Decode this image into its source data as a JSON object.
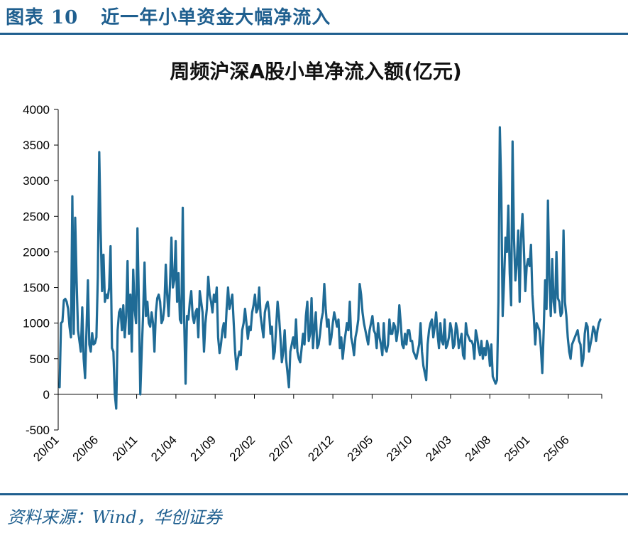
{
  "header": {
    "figure_label": "图表 10",
    "figure_title": "近一年小单资金大幅净流入"
  },
  "source": "资料来源：Wind，华创证券",
  "colors": {
    "accent": "#1f5f8f",
    "series": "#1f6b96",
    "axis": "#000000"
  },
  "chart_data": {
    "type": "line",
    "title": "周频沪深A股小单净流入额(亿元)",
    "xlabel": "",
    "ylabel": "",
    "ylim": [
      -500,
      4000
    ],
    "yticks": [
      -500,
      0,
      500,
      1000,
      1500,
      2000,
      2500,
      3000,
      3500,
      4000
    ],
    "x_tick_labels": [
      "20/01",
      "20/06",
      "20/11",
      "21/04",
      "21/09",
      "22/02",
      "22/07",
      "22/12",
      "23/05",
      "23/10",
      "24/03",
      "24/08",
      "25/01",
      "25/06"
    ],
    "grid": false,
    "legend": "none",
    "series": [
      {
        "name": "周频沪深A股小单净流入额",
        "frequency": "weekly",
        "values": [
          100,
          1000,
          1020,
          1320,
          1340,
          1300,
          1200,
          950,
          800,
          2780,
          850,
          2480,
          1600,
          900,
          750,
          600,
          1220,
          500,
          230,
          900,
          1600,
          700,
          600,
          860,
          700,
          720,
          800,
          1650,
          3400,
          2300,
          1450,
          1960,
          1300,
          1400,
          1350,
          1500,
          2080,
          650,
          600,
          0,
          -200,
          900,
          1150,
          1200,
          900,
          1250,
          800,
          1100,
          1870,
          850,
          1400,
          600,
          1750,
          1200,
          1000,
          2330,
          1300,
          0,
          600,
          1130,
          1850,
          1100,
          1300,
          1000,
          950,
          1150,
          1000,
          600,
          1150,
          1350,
          1400,
          1300,
          1000,
          1050,
          1230,
          1820,
          1400,
          1100,
          1550,
          2200,
          1500,
          1600,
          2150,
          1300,
          1700,
          1050,
          1000,
          2620,
          1050,
          150,
          1100,
          1050,
          1300,
          1450,
          1100,
          1000,
          1150,
          1200,
          800,
          1450,
          1300,
          1150,
          600,
          1000,
          1200,
          1650,
          1400,
          1300,
          1150,
          1400,
          1300,
          1500,
          800,
          580,
          700,
          900,
          1000,
          800,
          1200,
          1500,
          1200,
          1300,
          1400,
          1000,
          600,
          350,
          500,
          600,
          550,
          900,
          1000,
          1200,
          1000,
          780,
          950,
          900,
          1150,
          1250,
          1400,
          1150,
          1200,
          1500,
          1100,
          950,
          800,
          1150,
          1250,
          1300,
          1150,
          850,
          950,
          500,
          600,
          950,
          1300,
          1100,
          800,
          450,
          600,
          900,
          500,
          300,
          100,
          600,
          700,
          800,
          650,
          1050,
          600,
          500,
          450,
          650,
          850,
          700,
          1100,
          1300,
          750,
          850,
          1350,
          650,
          950,
          1150,
          650,
          700,
          850,
          1050,
          1150,
          1550,
          1200,
          950,
          1050,
          700,
          800,
          1000,
          1150,
          1050,
          950,
          1050,
          650,
          800,
          500,
          700,
          850,
          1000,
          900,
          1300,
          800,
          700,
          550,
          800,
          900,
          1050,
          1550,
          1400,
          1150,
          1000,
          900,
          800,
          700,
          900,
          1000,
          1100,
          900,
          850,
          650,
          1000,
          800,
          700,
          550,
          1000,
          650,
          600,
          700,
          1050,
          850,
          850,
          1000,
          950,
          750,
          900,
          1250,
          1000,
          700,
          650,
          850,
          700,
          900,
          900,
          750,
          750,
          600,
          550,
          500,
          600,
          700,
          1000,
          600,
          400,
          300,
          200,
          700,
          900,
          1000,
          1050,
          800,
          950,
          1150,
          850,
          650,
          1000,
          750,
          700,
          1050,
          650,
          700,
          800,
          1000,
          900,
          650,
          700,
          1000,
          900,
          650,
          750,
          850,
          550,
          500,
          1000,
          850,
          800,
          750,
          750,
          700,
          500,
          900,
          800,
          650,
          550,
          750,
          500,
          650,
          550,
          750,
          650,
          400,
          700,
          250,
          200,
          150,
          200,
          1300,
          3750,
          2900,
          1100,
          1600,
          2200,
          2000,
          2650,
          1700,
          1250,
          3550,
          2200,
          1600,
          1850,
          2300,
          1300,
          2200,
          2530,
          2050,
          1450,
          1800,
          1900,
          1800,
          2100,
          1400,
          1100,
          700,
          1000,
          950,
          900,
          650,
          300,
          900,
          1600,
          1200,
          2720,
          1600,
          1100,
          1900,
          1300,
          1150,
          2000,
          1350,
          1300,
          1100,
          1150,
          2300,
          1300,
          1100,
          800,
          600,
          500,
          700,
          750,
          800,
          850,
          900,
          750,
          700,
          400,
          500,
          850,
          1000,
          950,
          600,
          700,
          800,
          950,
          900,
          750,
          900,
          1000,
          1050
        ]
      }
    ]
  }
}
